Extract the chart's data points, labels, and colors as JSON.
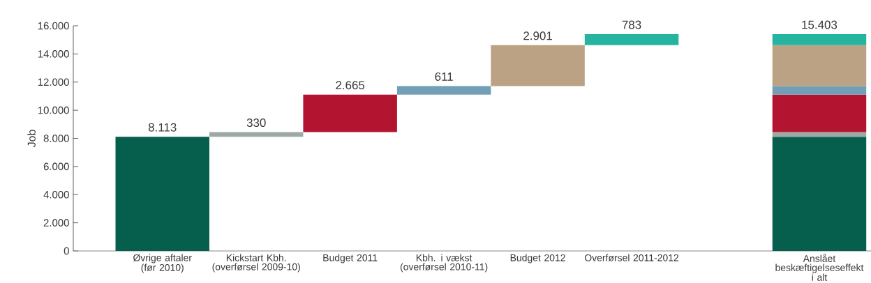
{
  "chart_data": {
    "type": "bar",
    "ylabel": "Job",
    "categories": [
      "Øvrige aftaler (før 2010)",
      "Kickstart Kbh. (overførsel 2009-10)",
      "Budget 2011",
      "Kbh. i vækst (overførsel 2010-11)",
      "Budget 2012",
      "Overførsel 2011-2012",
      null,
      "Anslået beskæftigelseseffekt i alt"
    ],
    "series": [
      {
        "color": "#065e4c",
        "values": [
          8113,
          null,
          null,
          null,
          null,
          null,
          null,
          8113
        ],
        "base": [
          0,
          null,
          null,
          null,
          null,
          null,
          null,
          0
        ],
        "value_labels": [
          "8.113",
          null,
          null,
          null,
          null,
          null,
          null,
          null
        ]
      },
      {
        "color": "#9ea9a5",
        "values": [
          null,
          330,
          null,
          null,
          null,
          null,
          null,
          330
        ],
        "base": [
          null,
          8113,
          null,
          null,
          null,
          null,
          null,
          8113
        ],
        "value_labels": [
          null,
          "330",
          null,
          null,
          null,
          null,
          null,
          null
        ]
      },
      {
        "color": "#b31531",
        "values": [
          null,
          null,
          2665,
          null,
          null,
          null,
          null,
          2665
        ],
        "base": [
          null,
          null,
          8443,
          null,
          null,
          null,
          null,
          8443
        ],
        "value_labels": [
          null,
          null,
          "2.665",
          null,
          null,
          null,
          null,
          null
        ]
      },
      {
        "color": "#729fb6",
        "values": [
          null,
          null,
          null,
          611,
          null,
          null,
          null,
          611
        ],
        "base": [
          null,
          null,
          null,
          11108,
          null,
          null,
          null,
          11108
        ],
        "value_labels": [
          null,
          null,
          null,
          "611",
          null,
          null,
          null,
          null
        ]
      },
      {
        "color": "#bba285",
        "values": [
          null,
          null,
          null,
          null,
          2901,
          null,
          null,
          2901
        ],
        "base": [
          null,
          null,
          null,
          null,
          11719,
          null,
          null,
          11719
        ],
        "value_labels": [
          null,
          null,
          null,
          null,
          "2.901",
          null,
          null,
          null
        ]
      },
      {
        "color": "#24b49f",
        "values": [
          null,
          null,
          null,
          null,
          null,
          783,
          null,
          783
        ],
        "base": [
          null,
          null,
          null,
          null,
          null,
          14620,
          null,
          14620
        ],
        "value_labels": [
          null,
          null,
          null,
          null,
          null,
          "783",
          null,
          null
        ]
      }
    ],
    "totals": [
      null,
      null,
      null,
      null,
      null,
      null,
      null,
      "15.403"
    ],
    "ylim": [
      0,
      16000
    ],
    "yticks": [
      {
        "value": 0,
        "label": "0"
      },
      {
        "value": 2000,
        "label": "2.000"
      },
      {
        "value": 4000,
        "label": "4.000"
      },
      {
        "value": 6000,
        "label": "6.000"
      },
      {
        "value": 8000,
        "label": "8.000"
      },
      {
        "value": 10000,
        "label": "10.000"
      },
      {
        "value": 12000,
        "label": "12.000"
      },
      {
        "value": 14000,
        "label": "14.000"
      },
      {
        "value": 16000,
        "label": "16.000"
      }
    ]
  }
}
